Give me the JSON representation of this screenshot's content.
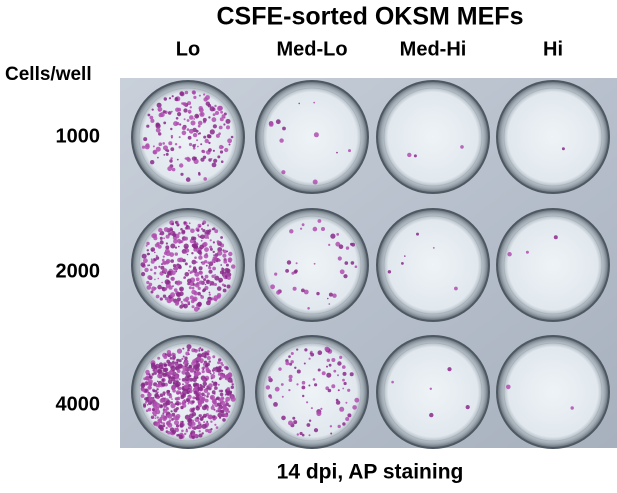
{
  "title": "CSFE-sorted OKSM MEFs",
  "columns": [
    "Lo",
    "Med-Lo",
    "Med-Hi",
    "Hi"
  ],
  "row_header": "Cells/well",
  "rows": [
    "1000",
    "2000",
    "4000"
  ],
  "caption": "14 dpi, AP staining"
}
